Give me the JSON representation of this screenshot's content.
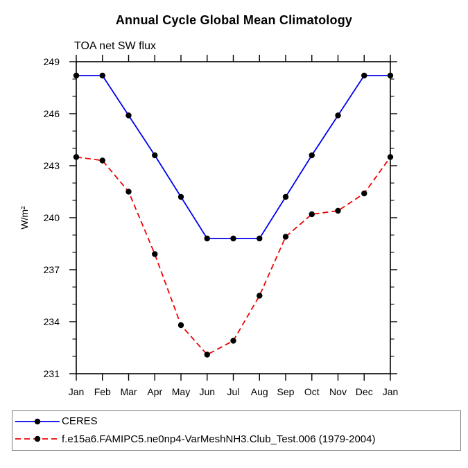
{
  "header": {
    "title": "Annual Cycle Global Mean Climatology",
    "subtitle": "TOA net SW flux"
  },
  "chart_data": {
    "type": "line",
    "title": "Annual Cycle Global Mean Climatology",
    "subtitle": "TOA net SW flux",
    "xlabel": "",
    "ylabel": "W/m²",
    "categories": [
      "Jan",
      "Feb",
      "Mar",
      "Apr",
      "May",
      "Jun",
      "Jul",
      "Aug",
      "Sep",
      "Oct",
      "Nov",
      "Dec",
      "Jan"
    ],
    "series": [
      {
        "name": "CERES",
        "color": "#0000ee",
        "style": "solid",
        "marker": "filled-circle",
        "marker_color": "#000000",
        "values": [
          248.2,
          248.2,
          245.9,
          243.6,
          241.2,
          238.8,
          238.8,
          238.8,
          241.2,
          243.6,
          245.9,
          248.2,
          248.2
        ]
      },
      {
        "name": "f.e15a6.FAMIPC5.ne0np4-VarMeshNH3.Club_Test.006 (1979-2004)",
        "color": "#ee0000",
        "style": "dashed",
        "marker": "filled-circle",
        "marker_color": "#000000",
        "values": [
          243.5,
          243.3,
          241.5,
          237.9,
          233.8,
          232.1,
          232.9,
          235.5,
          238.9,
          240.2,
          240.4,
          241.4,
          243.5
        ]
      }
    ],
    "ylim": [
      231,
      249
    ],
    "y_major_ticks": [
      231,
      234,
      237,
      240,
      243,
      246,
      249
    ],
    "y_minor_step": 1,
    "grid": false,
    "frame": "full-box",
    "legend_position": "bottom-left-box",
    "axis_color": "#000000"
  }
}
